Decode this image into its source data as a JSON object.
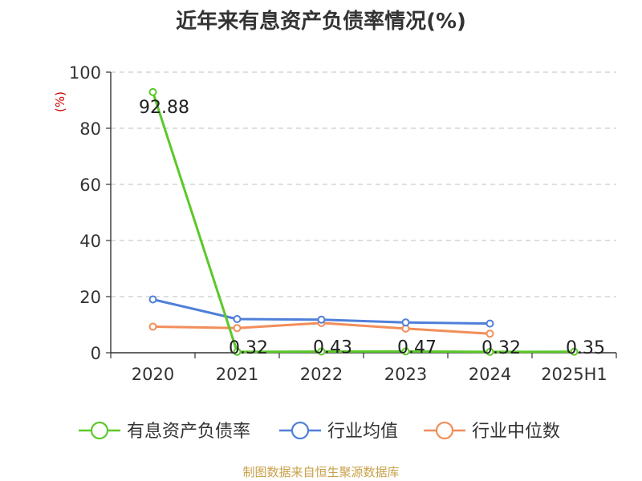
{
  "chart_data": {
    "type": "line",
    "title": "近年来有息资产负债率情况(%)",
    "ylabel": "(%)",
    "categories": [
      "2020",
      "2021",
      "2022",
      "2023",
      "2024",
      "2025H1"
    ],
    "ylim": [
      0,
      100
    ],
    "yticks": [
      0,
      20,
      40,
      60,
      80,
      100
    ],
    "grid": true,
    "legend_position": "bottom",
    "series": [
      {
        "name": "有息资产负债率",
        "color": "#5cc82a",
        "values": [
          92.88,
          0.32,
          0.43,
          0.47,
          0.32,
          0.35
        ],
        "labels": [
          "92.88",
          "0.32",
          "0.43",
          "0.47",
          "0.32",
          "0.35"
        ]
      },
      {
        "name": "行业均值",
        "color": "#4f7fd9",
        "values": [
          19.0,
          12.0,
          11.8,
          10.8,
          10.4,
          null
        ]
      },
      {
        "name": "行业中位数",
        "color": "#f28e5a",
        "values": [
          9.3,
          8.8,
          10.6,
          8.6,
          6.8,
          null
        ]
      }
    ]
  },
  "source": "制图数据来自恒生聚源数据库"
}
